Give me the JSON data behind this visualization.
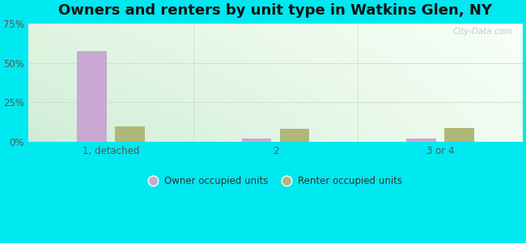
{
  "title": "Owners and renters by unit type in Watkins Glen, NY",
  "categories": [
    "1, detached",
    "2",
    "3 or 4"
  ],
  "owner_values": [
    57.5,
    2.0,
    2.0
  ],
  "renter_values": [
    9.5,
    8.0,
    8.5
  ],
  "owner_color": "#c9a8d4",
  "renter_color": "#b0b878",
  "ylim": [
    0,
    75
  ],
  "yticks": [
    0,
    25,
    50,
    75
  ],
  "yticklabels": [
    "0%",
    "25%",
    "50%",
    "75%"
  ],
  "outer_color": "#00e8f0",
  "title_fontsize": 13,
  "legend_owner": "Owner occupied units",
  "legend_renter": "Renter occupied units",
  "watermark": "City-Data.com"
}
